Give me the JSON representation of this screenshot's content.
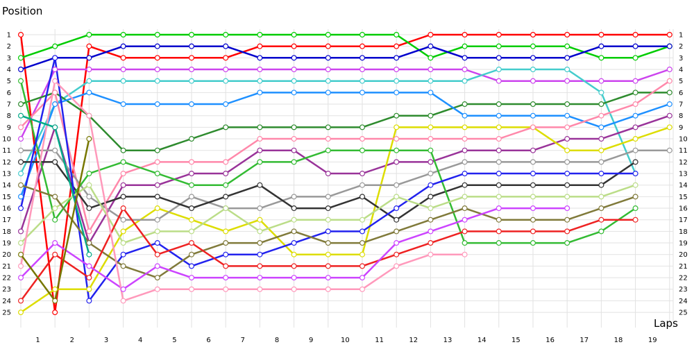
{
  "chart_data": {
    "type": "line",
    "title": "",
    "ylabel": "Position",
    "xlabel": "Laps",
    "x_ticks": [
      "1",
      "2",
      "3",
      "4",
      "5",
      "6",
      "7",
      "8",
      "9",
      "10",
      "11",
      "12",
      "13",
      "14",
      "15",
      "16",
      "17",
      "18",
      "19"
    ],
    "y_ticks": [
      1,
      2,
      3,
      4,
      5,
      6,
      7,
      8,
      9,
      10,
      11,
      12,
      13,
      14,
      15,
      16,
      17,
      18,
      19,
      20,
      21,
      22,
      23,
      24,
      25
    ],
    "x_range": [
      0,
      19.5
    ],
    "y_range": [
      1,
      25
    ],
    "y_inverted": true,
    "grid": true,
    "legend": "none",
    "series": [
      {
        "color": "#ff0000",
        "x": [
          0,
          1,
          2,
          3,
          4,
          5,
          6,
          7,
          8,
          9,
          10,
          11,
          12,
          13,
          14,
          15,
          16,
          17,
          18,
          19
        ],
        "y": [
          1,
          25,
          2,
          3,
          3,
          3,
          3,
          2,
          2,
          2,
          2,
          2,
          1,
          1,
          1,
          1,
          1,
          1,
          1,
          1
        ]
      },
      {
        "color": "#00cc00",
        "x": [
          0,
          1,
          2,
          3,
          4,
          5,
          6,
          7,
          8,
          9,
          10,
          11,
          12,
          13,
          14,
          15,
          16,
          17,
          18,
          19
        ],
        "y": [
          3,
          2,
          1,
          1,
          1,
          1,
          1,
          1,
          1,
          1,
          1,
          1,
          3,
          2,
          2,
          2,
          2,
          3,
          3,
          2
        ]
      },
      {
        "color": "#0000cc",
        "x": [
          0,
          1,
          2,
          3,
          4,
          5,
          6,
          7,
          8,
          9,
          10,
          11,
          12,
          13,
          14,
          15,
          16,
          17,
          18,
          19
        ],
        "y": [
          4,
          3,
          3,
          2,
          2,
          2,
          2,
          3,
          3,
          3,
          3,
          3,
          2,
          3,
          3,
          3,
          3,
          2,
          2,
          2
        ]
      },
      {
        "color": "#cc44ee",
        "x": [
          0,
          1,
          2,
          3,
          4,
          5,
          6,
          7,
          8,
          9,
          10,
          11,
          12,
          13,
          14,
          15,
          16,
          17,
          18,
          19
        ],
        "y": [
          10,
          4,
          4,
          4,
          4,
          4,
          4,
          4,
          4,
          4,
          4,
          4,
          4,
          4,
          5,
          5,
          5,
          5,
          5,
          4
        ]
      },
      {
        "color": "#44cccc",
        "x": [
          0,
          1,
          2,
          3,
          4,
          5,
          6,
          7,
          8,
          9,
          10,
          11,
          12,
          13,
          14,
          15,
          16,
          17,
          18
        ],
        "y": [
          13,
          7,
          5,
          5,
          5,
          5,
          5,
          5,
          5,
          5,
          5,
          5,
          5,
          5,
          4,
          4,
          4,
          6,
          13
        ]
      },
      {
        "color": "#2e8b2e",
        "x": [
          0,
          1,
          2,
          3,
          4,
          5,
          6,
          7,
          8,
          9,
          10,
          11,
          12,
          13,
          14,
          15,
          16,
          17,
          18,
          19
        ],
        "y": [
          7,
          6,
          8,
          11,
          11,
          10,
          9,
          9,
          9,
          9,
          9,
          8,
          8,
          7,
          7,
          7,
          7,
          7,
          6,
          6
        ]
      },
      {
        "color": "#1e90ff",
        "x": [
          0,
          1,
          2,
          3,
          4,
          5,
          6,
          7,
          8,
          9,
          10,
          11,
          12,
          13,
          14,
          15,
          16,
          17,
          18,
          19
        ],
        "y": [
          15,
          7,
          6,
          7,
          7,
          7,
          7,
          6,
          6,
          6,
          6,
          6,
          6,
          8,
          8,
          8,
          8,
          9,
          8,
          7
        ]
      },
      {
        "color": "#993399",
        "x": [
          0,
          1,
          2,
          3,
          4,
          5,
          6,
          7,
          8,
          9,
          10,
          11,
          12,
          13,
          14,
          15,
          16,
          17,
          18,
          19
        ],
        "y": [
          18,
          9,
          19,
          14,
          14,
          13,
          13,
          11,
          11,
          13,
          13,
          12,
          12,
          11,
          11,
          11,
          10,
          10,
          9,
          8
        ]
      },
      {
        "color": "#dddd00",
        "x": [
          0,
          1,
          2,
          3,
          4,
          5,
          6,
          7,
          8,
          9,
          10,
          11,
          12,
          13,
          14,
          15,
          16,
          17,
          18,
          19
        ],
        "y": [
          25,
          23,
          23,
          18,
          16,
          17,
          18,
          17,
          20,
          20,
          20,
          9,
          9,
          9,
          9,
          9,
          11,
          11,
          10,
          9
        ]
      },
      {
        "color": "#ff88aa",
        "x": [
          0,
          1,
          2,
          3,
          4,
          5,
          6,
          7,
          8,
          9,
          10,
          11,
          12,
          13,
          14,
          15,
          16,
          17,
          18,
          19
        ],
        "y": [
          9,
          6,
          18,
          13,
          12,
          12,
          12,
          10,
          10,
          10,
          10,
          10,
          10,
          10,
          10,
          9,
          9,
          8,
          7,
          5
        ]
      },
      {
        "color": "#999999",
        "x": [
          0,
          1,
          2,
          3,
          4,
          5,
          6,
          7,
          8,
          9,
          10,
          11,
          12,
          13,
          14,
          15,
          16,
          17,
          18,
          19
        ],
        "y": [
          11,
          11,
          15,
          17,
          17,
          15,
          16,
          16,
          15,
          15,
          14,
          14,
          13,
          12,
          12,
          12,
          12,
          12,
          11,
          11
        ]
      },
      {
        "color": "#333333",
        "x": [
          0,
          1,
          2,
          3,
          4,
          5,
          6,
          7,
          8,
          9,
          10,
          11,
          12,
          13,
          14,
          15,
          16,
          17,
          18
        ],
        "y": [
          12,
          12,
          16,
          15,
          15,
          16,
          15,
          14,
          16,
          16,
          15,
          17,
          15,
          14,
          14,
          14,
          14,
          14,
          12
        ]
      },
      {
        "color": "#33bb33",
        "x": [
          0,
          1,
          2,
          3,
          4,
          5,
          6,
          7,
          8,
          9,
          10,
          11,
          12,
          13,
          14,
          15,
          16,
          17,
          18
        ],
        "y": [
          5,
          17,
          13,
          12,
          13,
          14,
          14,
          12,
          12,
          11,
          11,
          11,
          11,
          19,
          19,
          19,
          19,
          18,
          16
        ]
      },
      {
        "color": "#2222ee",
        "x": [
          0,
          1,
          2,
          3,
          4,
          5,
          6,
          7,
          8,
          9,
          10,
          11,
          12,
          13,
          14,
          15,
          16,
          17,
          18
        ],
        "y": [
          16,
          3,
          24,
          20,
          19,
          21,
          20,
          20,
          19,
          18,
          18,
          16,
          14,
          13,
          13,
          13,
          13,
          13,
          13
        ]
      },
      {
        "color": "#bbdd88",
        "x": [
          0,
          1,
          2,
          3,
          4,
          5,
          6,
          7,
          8,
          9,
          10,
          11,
          12,
          13,
          14,
          15,
          16,
          17,
          18
        ],
        "y": [
          19,
          16,
          14,
          19,
          18,
          18,
          16,
          18,
          17,
          17,
          17,
          15,
          16,
          15,
          15,
          15,
          15,
          15,
          14
        ]
      },
      {
        "color": "#807a3a",
        "x": [
          0,
          1,
          2,
          3,
          4,
          5,
          6,
          7,
          8,
          9,
          10,
          11,
          12,
          13,
          14,
          15,
          16,
          17,
          18
        ],
        "y": [
          14,
          15,
          19,
          21,
          22,
          20,
          19,
          19,
          18,
          19,
          19,
          18,
          17,
          16,
          17,
          17,
          17,
          16,
          15
        ]
      },
      {
        "color": "#ee2222",
        "x": [
          0,
          1,
          2,
          3,
          4,
          5,
          6,
          7,
          8,
          9,
          10,
          11,
          12,
          13,
          14,
          15,
          16,
          17,
          18
        ],
        "y": [
          24,
          20,
          22,
          16,
          20,
          19,
          21,
          21,
          21,
          21,
          21,
          20,
          19,
          18,
          18,
          18,
          18,
          17,
          17
        ]
      },
      {
        "color": "#cc44ff",
        "x": [
          0,
          1,
          2,
          3,
          4,
          5,
          6,
          7,
          8,
          9,
          10,
          11,
          12,
          13,
          14,
          15,
          16
        ],
        "y": [
          22,
          19,
          21,
          23,
          21,
          22,
          22,
          22,
          22,
          22,
          22,
          19,
          18,
          17,
          16,
          16,
          16
        ]
      },
      {
        "color": "#ff99bb",
        "x": [
          0,
          1,
          2,
          3,
          4,
          5,
          6,
          7,
          8,
          9,
          10,
          11,
          12,
          13
        ],
        "y": [
          21,
          5,
          8,
          24,
          23,
          23,
          23,
          23,
          23,
          23,
          23,
          21,
          20,
          20
        ]
      },
      {
        "color": "#00aa88",
        "x": [
          0,
          1,
          2
        ],
        "y": [
          8,
          9,
          20
        ]
      },
      {
        "color": "#777700",
        "x": [
          0,
          1,
          2
        ],
        "y": [
          20,
          24,
          10
        ]
      }
    ]
  }
}
